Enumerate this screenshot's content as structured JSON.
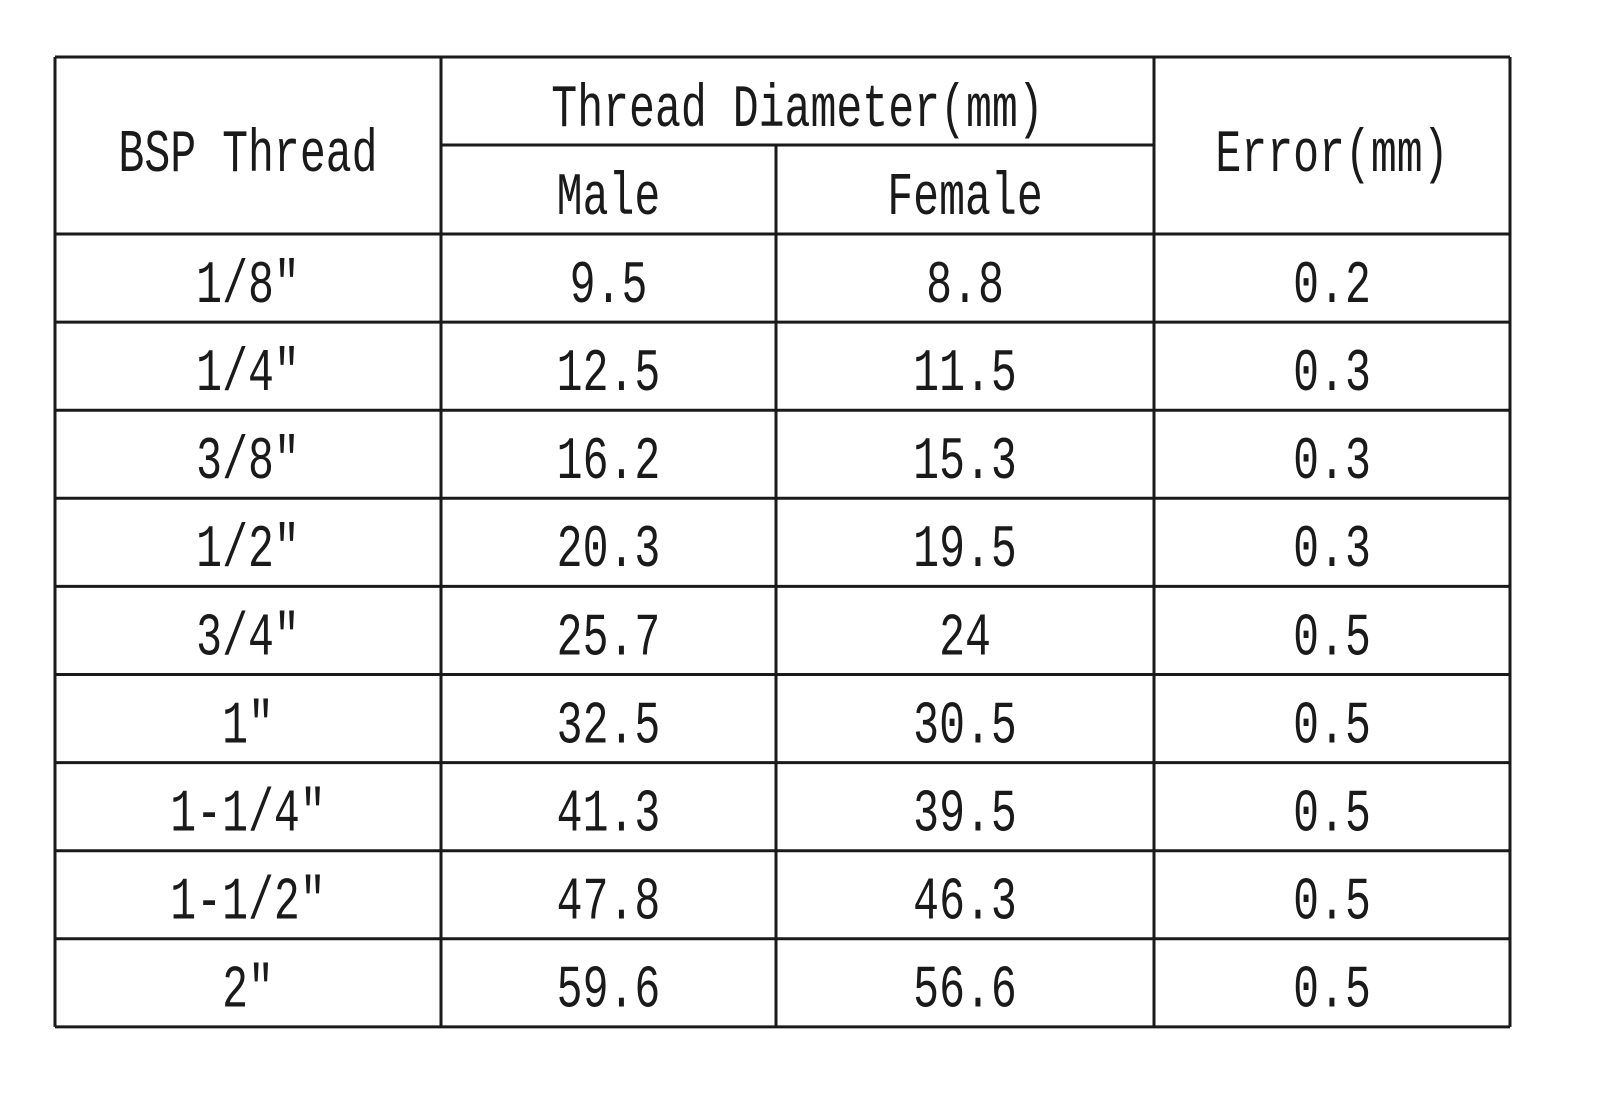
{
  "table": {
    "header": {
      "thread": "BSP Thread",
      "diameter": "Thread Diameter(mm)",
      "male": "Male",
      "female": "Female",
      "error": "Error(mm)"
    },
    "rows": [
      [
        "1/8″",
        "9.5",
        "8.8",
        "0.2"
      ],
      [
        "1/4″",
        "12.5",
        "11.5",
        "0.3"
      ],
      [
        "3/8″",
        "16.2",
        "15.3",
        "0.3"
      ],
      [
        "1/2″",
        "20.3",
        "19.5",
        "0.3"
      ],
      [
        "3/4″",
        "25.7",
        "24",
        "0.5"
      ],
      [
        "1″",
        "32.5",
        "30.5",
        "0.5"
      ],
      [
        "1-1/4″",
        "41.3",
        "39.5",
        "0.5"
      ],
      [
        "1-1/2″",
        "47.8",
        "46.3",
        "0.5"
      ],
      [
        "2″",
        "59.6",
        "56.6",
        "0.5"
      ]
    ]
  }
}
